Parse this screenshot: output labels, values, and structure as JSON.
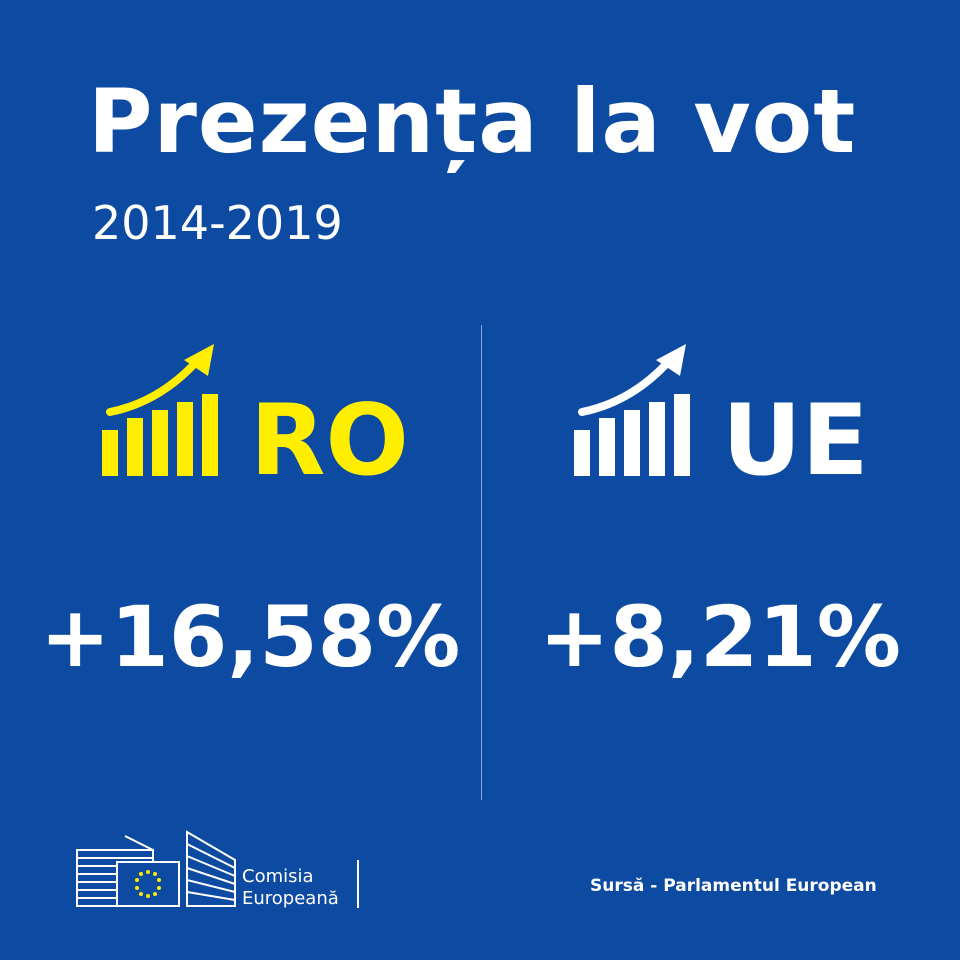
{
  "header": {
    "title": "Prezența la vot",
    "subtitle": "2014-2019"
  },
  "colors": {
    "background": "#0d4aa1",
    "ro_accent": "#ffee00",
    "ue_accent": "#ffffff"
  },
  "panels": {
    "ro": {
      "code": "RO",
      "change": "+16,58%",
      "icon": "rising-bar-chart-icon"
    },
    "ue": {
      "code": "UE",
      "change": "+8,21%",
      "icon": "rising-bar-chart-icon"
    }
  },
  "footer": {
    "logo_line1": "Comisia",
    "logo_line2": "Europeană",
    "source": "Sursă - Parlamentul European"
  }
}
